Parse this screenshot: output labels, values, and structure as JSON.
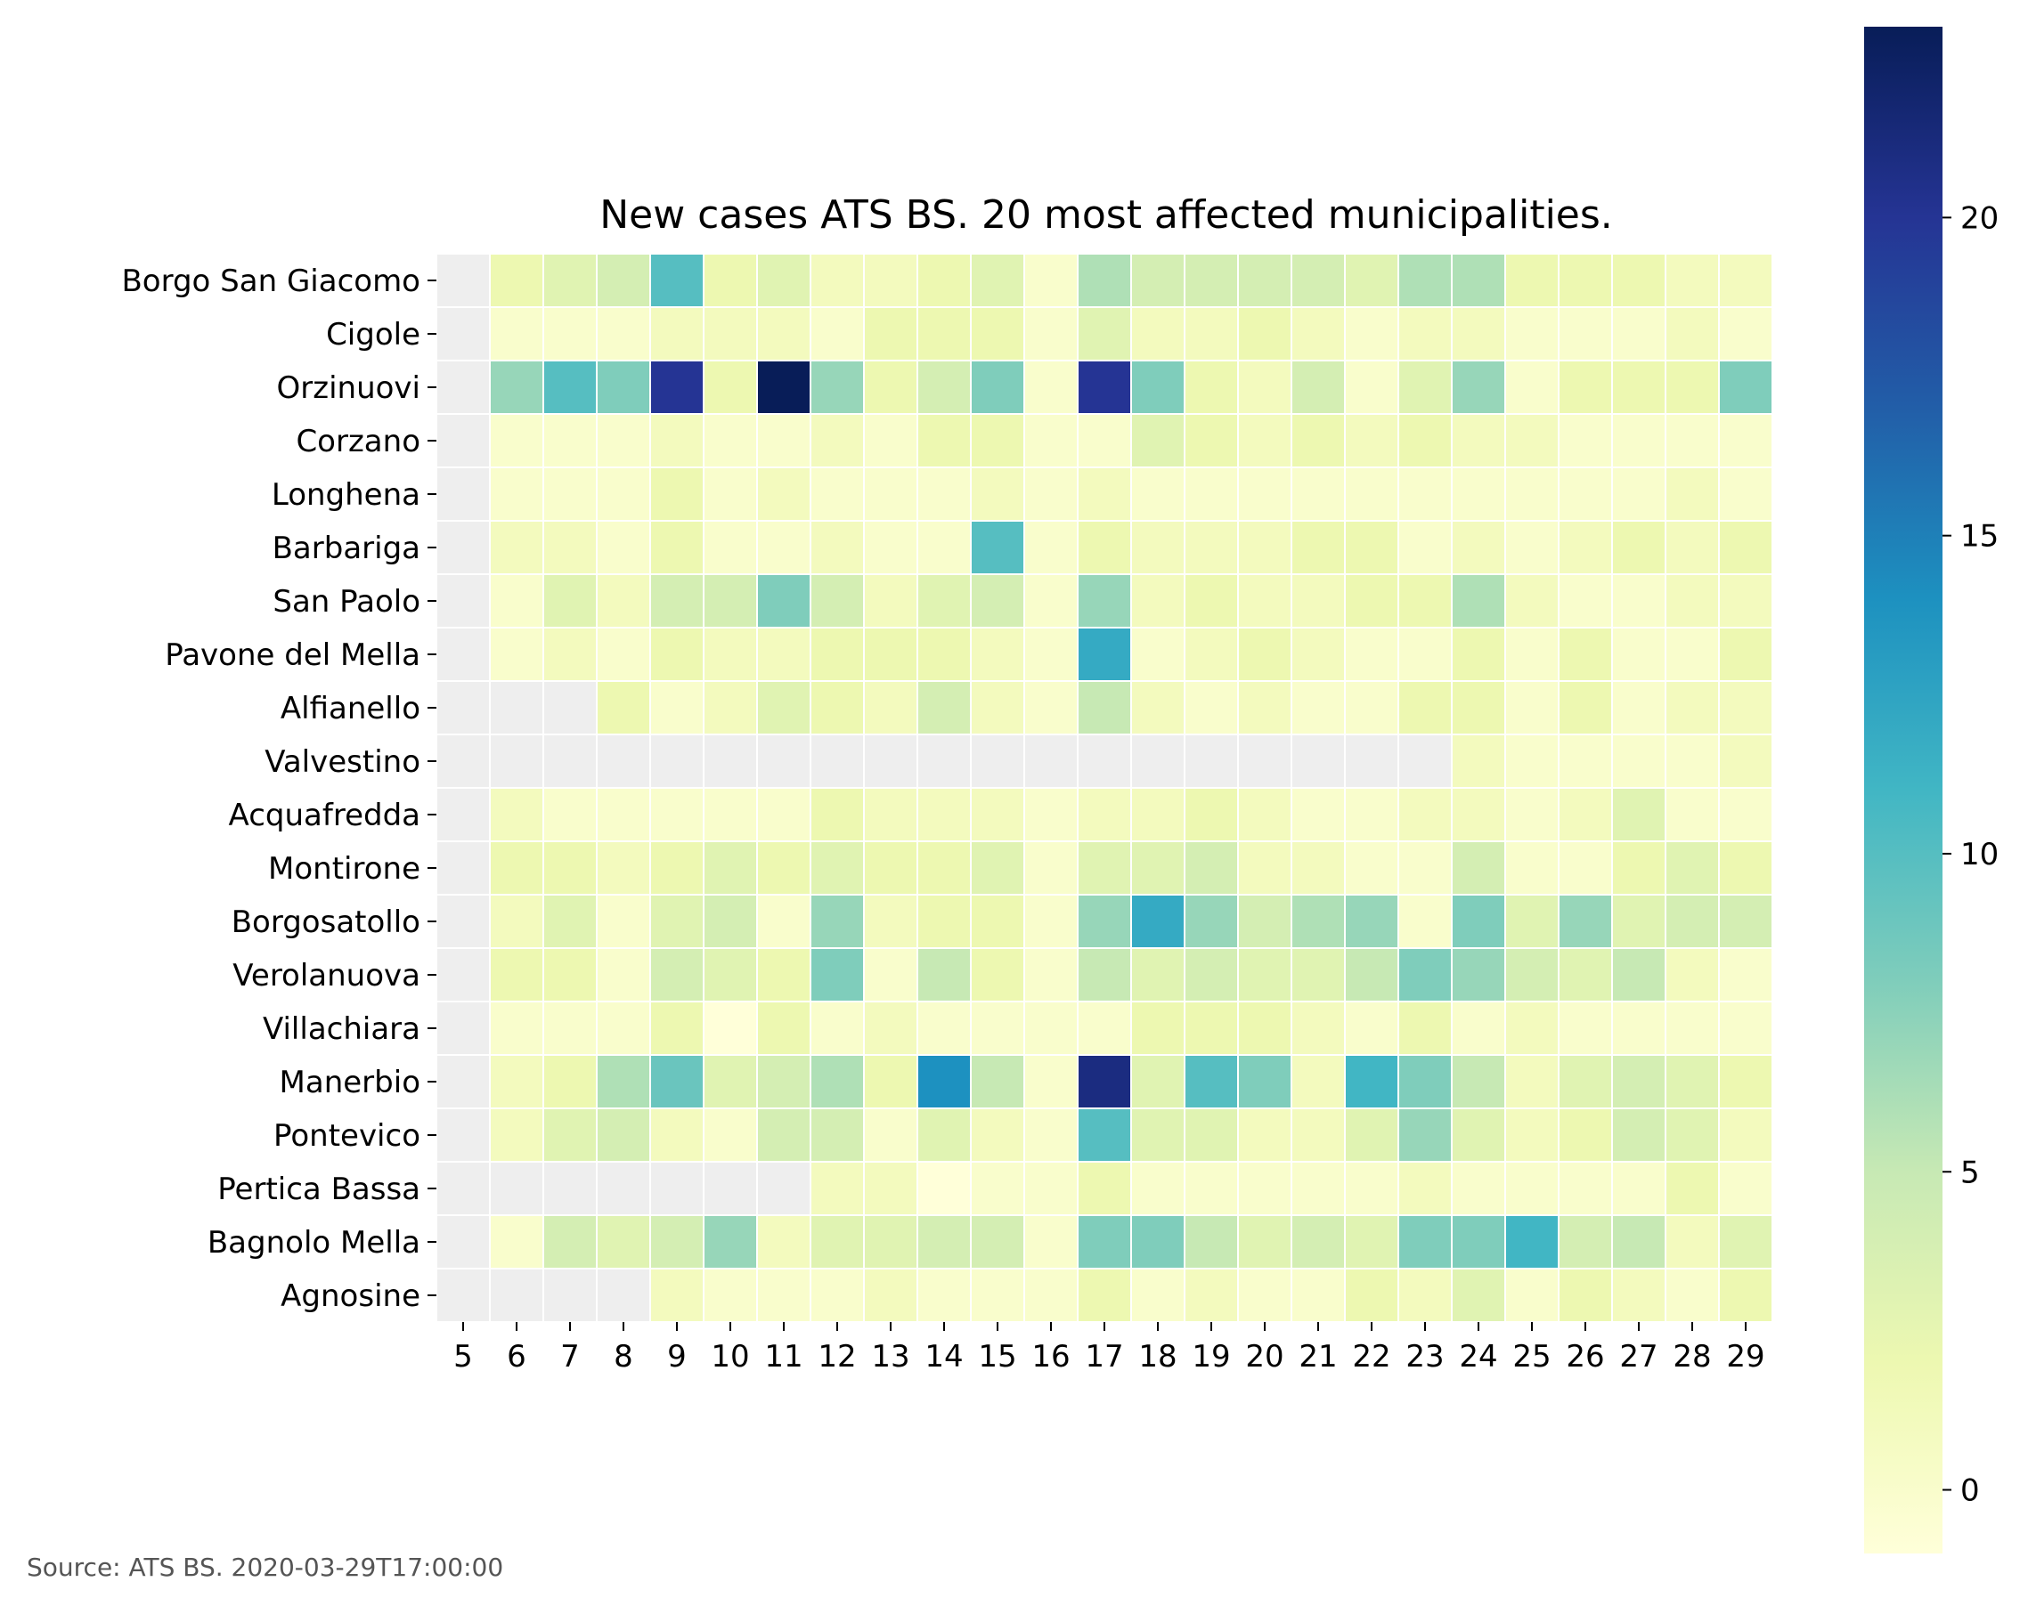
{
  "chart_data": {
    "type": "heatmap",
    "title": "New cases ATS BS. 20 most affected municipalities.",
    "source": "Source: ATS BS. 2020-03-29T17:00:00",
    "x": [
      "5",
      "6",
      "7",
      "8",
      "9",
      "10",
      "11",
      "12",
      "13",
      "14",
      "15",
      "16",
      "17",
      "18",
      "19",
      "20",
      "21",
      "22",
      "23",
      "24",
      "25",
      "26",
      "27",
      "28",
      "29"
    ],
    "y": [
      "Borgo San Giacomo",
      "Cigole",
      "Orzinuovi",
      "Corzano",
      "Longhena",
      "Barbariga",
      "San Paolo",
      "Pavone del Mella",
      "Alfianello",
      "Valvestino",
      "Acquafredda",
      "Montirone",
      "Borgosatollo",
      "Verolanuova",
      "Villachiara",
      "Manerbio",
      "Pontevico",
      "Pertica Bassa",
      "Bagnolo Mella",
      "Agnosine"
    ],
    "values": [
      [
        null,
        2,
        3,
        4,
        10,
        2,
        3,
        1,
        1,
        2,
        3,
        0,
        6,
        4,
        4,
        4,
        4,
        3,
        6,
        6,
        2,
        2,
        2,
        1,
        1
      ],
      [
        null,
        0,
        0,
        0,
        1,
        1,
        1,
        0,
        2,
        2,
        2,
        0,
        3,
        1,
        1,
        2,
        1,
        0,
        1,
        1,
        0,
        0,
        0,
        1,
        0
      ],
      [
        null,
        7,
        10,
        8,
        20,
        2,
        23,
        7,
        2,
        4,
        8,
        0,
        20,
        8,
        2,
        1,
        4,
        0,
        3,
        7,
        0,
        2,
        2,
        2,
        8
      ],
      [
        null,
        0,
        0,
        0,
        1,
        0,
        0,
        1,
        0,
        2,
        2,
        0,
        0,
        3,
        2,
        1,
        2,
        1,
        2,
        1,
        1,
        0,
        0,
        0,
        0
      ],
      [
        null,
        0,
        0,
        0,
        2,
        0,
        1,
        0,
        0,
        0,
        1,
        0,
        1,
        0,
        0,
        0,
        0,
        0,
        0,
        0,
        0,
        0,
        0,
        1,
        0
      ],
      [
        null,
        1,
        1,
        0,
        2,
        0,
        0,
        1,
        0,
        0,
        10,
        0,
        2,
        1,
        1,
        1,
        2,
        2,
        0,
        1,
        0,
        1,
        2,
        1,
        2
      ],
      [
        null,
        0,
        3,
        1,
        4,
        4,
        8,
        4,
        1,
        3,
        4,
        0,
        7,
        1,
        2,
        1,
        1,
        2,
        2,
        6,
        1,
        0,
        0,
        1,
        1
      ],
      [
        null,
        0,
        1,
        0,
        2,
        1,
        1,
        2,
        2,
        2,
        1,
        0,
        12,
        0,
        1,
        2,
        1,
        0,
        0,
        2,
        0,
        2,
        0,
        0,
        2
      ],
      [
        null,
        null,
        null,
        2,
        0,
        1,
        3,
        2,
        1,
        4,
        1,
        0,
        5,
        1,
        0,
        1,
        0,
        0,
        2,
        2,
        0,
        2,
        0,
        1,
        1
      ],
      [
        null,
        null,
        null,
        null,
        null,
        null,
        null,
        null,
        null,
        null,
        null,
        null,
        null,
        null,
        null,
        null,
        null,
        null,
        null,
        1,
        0,
        0,
        0,
        0,
        1
      ],
      [
        null,
        1,
        0,
        0,
        0,
        0,
        0,
        2,
        1,
        1,
        1,
        0,
        1,
        1,
        2,
        1,
        0,
        0,
        1,
        1,
        0,
        1,
        3,
        0,
        0
      ],
      [
        null,
        2,
        2,
        1,
        2,
        3,
        2,
        3,
        2,
        2,
        3,
        0,
        3,
        3,
        4,
        1,
        1,
        0,
        0,
        4,
        0,
        0,
        2,
        3,
        2
      ],
      [
        null,
        1,
        3,
        0,
        3,
        4,
        0,
        7,
        1,
        2,
        2,
        0,
        7,
        12,
        7,
        4,
        6,
        7,
        0,
        8,
        3,
        7,
        3,
        4,
        4
      ],
      [
        null,
        2,
        2,
        0,
        4,
        3,
        2,
        8,
        0,
        5,
        2,
        0,
        5,
        3,
        4,
        3,
        3,
        5,
        8,
        7,
        4,
        3,
        5,
        1,
        0
      ],
      [
        null,
        0,
        0,
        0,
        2,
        -1,
        2,
        0,
        1,
        0,
        0,
        0,
        0,
        2,
        2,
        2,
        1,
        0,
        2,
        0,
        1,
        0,
        0,
        0,
        0
      ],
      [
        null,
        1,
        2,
        6,
        9,
        3,
        4,
        6,
        2,
        14,
        5,
        0,
        21,
        3,
        10,
        8,
        1,
        11,
        8,
        5,
        1,
        3,
        4,
        3,
        2
      ],
      [
        null,
        1,
        3,
        4,
        1,
        0,
        4,
        4,
        0,
        3,
        1,
        0,
        10,
        3,
        3,
        1,
        1,
        3,
        7,
        3,
        1,
        2,
        4,
        3,
        1
      ],
      [
        null,
        null,
        null,
        null,
        null,
        null,
        null,
        1,
        1,
        -1,
        0,
        0,
        2,
        0,
        0,
        0,
        0,
        0,
        1,
        0,
        0,
        0,
        0,
        2,
        0
      ],
      [
        null,
        0,
        4,
        3,
        4,
        7,
        1,
        3,
        3,
        4,
        4,
        0,
        8,
        8,
        5,
        3,
        4,
        3,
        8,
        8,
        11,
        4,
        5,
        1,
        3
      ],
      [
        null,
        null,
        null,
        null,
        1,
        0,
        0,
        0,
        1,
        0,
        0,
        0,
        2,
        0,
        1,
        0,
        0,
        2,
        1,
        3,
        0,
        2,
        1,
        0,
        2
      ]
    ],
    "colorbar": {
      "min": -1,
      "max": 23,
      "ticks": [
        "0",
        "5",
        "10",
        "15",
        "20"
      ]
    },
    "colormap": "YlGnBu",
    "missing_color": "#eeeeee"
  }
}
